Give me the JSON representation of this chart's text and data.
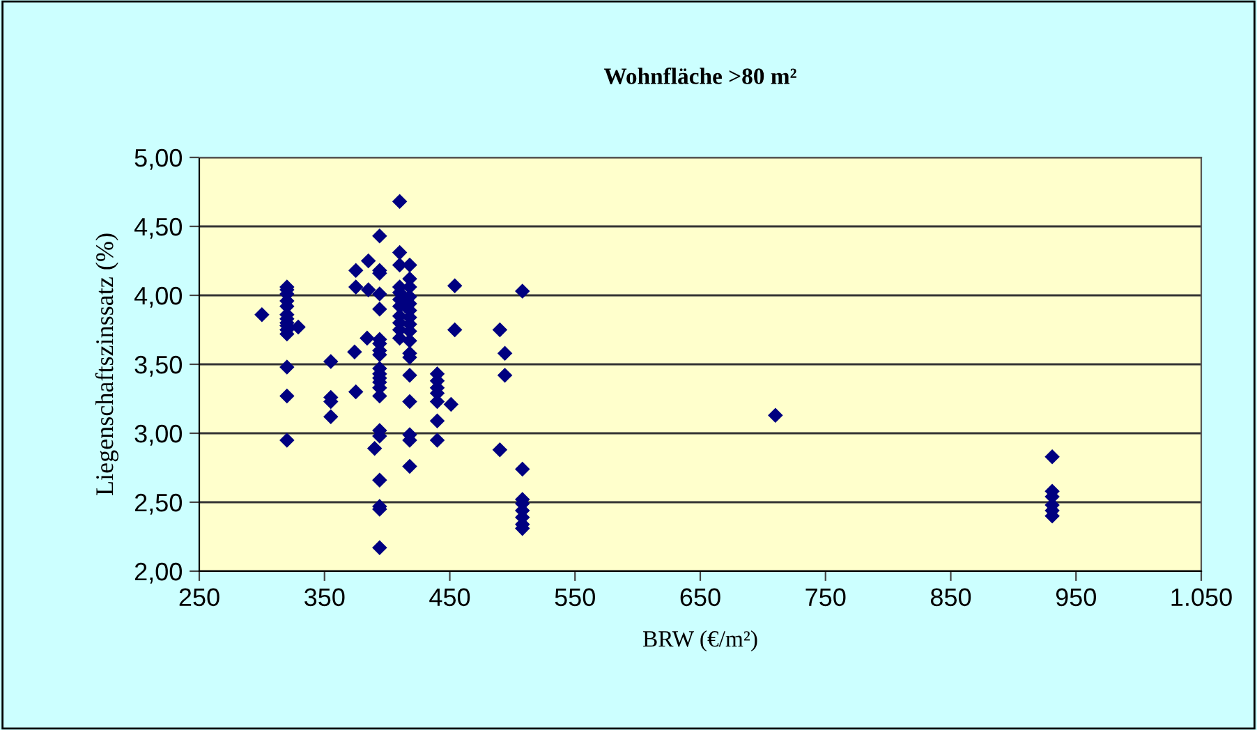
{
  "chart_data": {
    "type": "scatter",
    "title": "Wohnfläche >80 m²",
    "xlabel": "BRW (€/m²)",
    "ylabel": "Liegenschaftszinssatz (%)",
    "series": [
      {
        "color": "#000080",
        "x": [
          300,
          320,
          320,
          320,
          320,
          320,
          320,
          320,
          320,
          320,
          320,
          320,
          320,
          320,
          320,
          329,
          355,
          355,
          355,
          355,
          375,
          375,
          375,
          385,
          385,
          374,
          384,
          390,
          394,
          394,
          394,
          394,
          394,
          394,
          394,
          394,
          394,
          394,
          394,
          394,
          394,
          394,
          394,
          394,
          394,
          394,
          394,
          394,
          394,
          410,
          410,
          410,
          410,
          410,
          410,
          410,
          410,
          410,
          410,
          410,
          418,
          418,
          418,
          418,
          418,
          418,
          418,
          418,
          418,
          418,
          418,
          418,
          418,
          418,
          418,
          418,
          418,
          440,
          440,
          440,
          440,
          440,
          440,
          440,
          451,
          454,
          454,
          490,
          490,
          494,
          494,
          508,
          508,
          508,
          508,
          508,
          508,
          508,
          508,
          710,
          931,
          931,
          931,
          931,
          931,
          931
        ],
        "values": [
          3.86,
          4.06,
          4.04,
          4.01,
          3.96,
          3.92,
          3.86,
          3.83,
          3.8,
          3.78,
          3.75,
          3.72,
          3.48,
          3.27,
          2.95,
          3.77,
          3.52,
          3.26,
          3.23,
          3.12,
          3.3,
          4.18,
          4.06,
          4.25,
          4.04,
          3.59,
          3.69,
          2.89,
          4.43,
          4.18,
          4.16,
          4.01,
          3.9,
          3.68,
          3.65,
          3.6,
          3.57,
          3.47,
          3.43,
          3.4,
          3.37,
          3.33,
          3.27,
          3.02,
          2.98,
          2.66,
          2.47,
          2.45,
          2.17,
          4.68,
          4.31,
          4.22,
          4.06,
          4.02,
          3.97,
          3.92,
          3.85,
          3.8,
          3.75,
          3.69,
          4.22,
          4.12,
          4.06,
          3.99,
          3.94,
          3.89,
          3.84,
          3.79,
          3.74,
          3.67,
          3.58,
          3.55,
          3.42,
          3.23,
          2.99,
          2.95,
          2.76,
          3.43,
          3.38,
          3.33,
          3.29,
          3.23,
          3.09,
          2.95,
          3.21,
          4.07,
          3.75,
          3.75,
          2.88,
          3.58,
          3.42,
          4.03,
          2.74,
          2.52,
          2.49,
          2.44,
          2.39,
          2.34,
          2.31,
          3.13,
          2.83,
          2.58,
          2.54,
          2.48,
          2.44,
          2.4
        ]
      }
    ],
    "marker": "diamond",
    "xlim": [
      250,
      1050
    ],
    "xticks": [
      250,
      350,
      450,
      550,
      650,
      750,
      850,
      950,
      {
        "value": 1050,
        "label": "1.050"
      }
    ],
    "ylim": [
      2,
      5
    ],
    "yticks": [
      {
        "value": 2,
        "label": "2,00"
      },
      {
        "value": 2.5,
        "label": "2,50"
      },
      {
        "value": 3,
        "label": "3,00"
      },
      {
        "value": 3.5,
        "label": "3,50"
      },
      {
        "value": 4,
        "label": "4,00"
      },
      {
        "value": 4.5,
        "label": "4,50"
      },
      {
        "value": 5,
        "label": "5,00"
      }
    ],
    "grid": "y"
  }
}
